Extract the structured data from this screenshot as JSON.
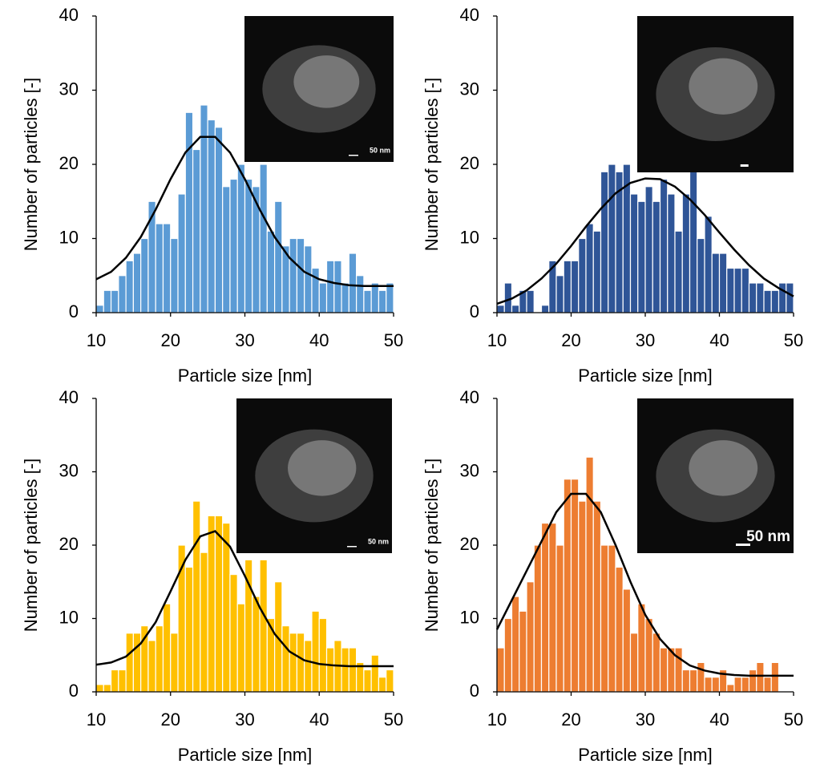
{
  "chart_data": [
    {
      "type": "histogram",
      "xlabel": "Particle size [nm]",
      "ylabel": "Number of particles [-]",
      "bins": [
        10,
        11,
        12,
        13,
        14,
        15,
        16,
        17,
        18,
        19,
        20,
        21,
        22,
        23,
        24,
        25,
        26,
        27,
        28,
        29,
        30,
        31,
        32,
        33,
        34,
        35,
        36,
        37,
        38,
        39,
        40,
        41,
        42,
        43,
        44,
        45,
        46,
        47,
        48,
        49,
        50
      ],
      "values": [
        1,
        3,
        3,
        5,
        7,
        8,
        10,
        15,
        12,
        12,
        10,
        16,
        27,
        22,
        28,
        26,
        25,
        17,
        18,
        20,
        18,
        17,
        20,
        11,
        15,
        9,
        10,
        10,
        9,
        6,
        4,
        7,
        7,
        4,
        8,
        5,
        3,
        4,
        3,
        4
      ],
      "color": "#5b9bd5",
      "fit": {
        "x": [
          10,
          12,
          14,
          16,
          18,
          20,
          22,
          24,
          26,
          28,
          30,
          32,
          34,
          36,
          38,
          40,
          42,
          44,
          46,
          48,
          50
        ],
        "values": [
          4.5,
          5.5,
          7.4,
          10.2,
          13.9,
          18.0,
          21.6,
          23.7,
          23.7,
          21.6,
          18.0,
          13.9,
          10.2,
          7.4,
          5.5,
          4.5,
          4.0,
          3.7,
          3.6,
          3.6,
          3.6
        ],
        "color": "#000000"
      },
      "xlim": [
        10,
        50
      ],
      "ylim": [
        0,
        40
      ],
      "xticks": [
        10,
        20,
        30,
        40,
        50
      ],
      "yticks": [
        0,
        10,
        20,
        30,
        40
      ],
      "inset_label": "50 nm"
    },
    {
      "type": "histogram",
      "xlabel": "Particle size [nm]",
      "ylabel": "Number of particles [-]",
      "bins": [
        10,
        11,
        12,
        13,
        14,
        15,
        16,
        17,
        18,
        19,
        20,
        21,
        22,
        23,
        24,
        25,
        26,
        27,
        28,
        29,
        30,
        31,
        32,
        33,
        34,
        35,
        36,
        37,
        38,
        39,
        40,
        41,
        42,
        43,
        44,
        45,
        46,
        47,
        48,
        49,
        50
      ],
      "values": [
        1,
        4,
        1,
        3,
        3,
        0,
        1,
        7,
        5,
        7,
        7,
        10,
        12,
        11,
        19,
        20,
        19,
        20,
        16,
        15,
        17,
        15,
        18,
        16,
        11,
        16,
        20,
        10,
        13,
        8,
        8,
        6,
        6,
        6,
        4,
        4,
        3,
        3,
        4,
        4
      ],
      "color": "#2f5597",
      "fit": {
        "x": [
          10,
          12,
          14,
          16,
          18,
          20,
          22,
          24,
          26,
          28,
          30,
          32,
          34,
          36,
          38,
          40,
          42,
          44,
          46,
          48,
          50
        ],
        "values": [
          1.2,
          1.9,
          3.0,
          4.6,
          6.6,
          9.0,
          11.6,
          14.0,
          16.1,
          17.5,
          18.1,
          18.0,
          17.0,
          15.3,
          13.2,
          10.8,
          8.5,
          6.4,
          4.6,
          3.3,
          2.2
        ],
        "color": "#000000"
      },
      "xlim": [
        10,
        50
      ],
      "ylim": [
        0,
        40
      ],
      "xticks": [
        10,
        20,
        30,
        40,
        50
      ],
      "yticks": [
        0,
        10,
        20,
        30,
        40
      ]
    },
    {
      "type": "histogram",
      "xlabel": "Particle size [nm]",
      "ylabel": "Number of particles [-]",
      "bins": [
        10,
        11,
        12,
        13,
        14,
        15,
        16,
        17,
        18,
        19,
        20,
        21,
        22,
        23,
        24,
        25,
        26,
        27,
        28,
        29,
        30,
        31,
        32,
        33,
        34,
        35,
        36,
        37,
        38,
        39,
        40,
        41,
        42,
        43,
        44,
        45,
        46,
        47,
        48,
        49,
        50
      ],
      "values": [
        1,
        1,
        3,
        3,
        8,
        8,
        9,
        7,
        9,
        12,
        8,
        20,
        17,
        26,
        19,
        24,
        24,
        23,
        16,
        12,
        18,
        13,
        18,
        10,
        15,
        9,
        8,
        8,
        7,
        11,
        10,
        6,
        7,
        6,
        6,
        4,
        3,
        5,
        2,
        3
      ],
      "color": "#ffc000",
      "fit": {
        "x": [
          10,
          12,
          14,
          16,
          18,
          20,
          22,
          24,
          26,
          28,
          30,
          32,
          34,
          36,
          38,
          40,
          42,
          44,
          46,
          48,
          50
        ],
        "values": [
          3.7,
          4.0,
          4.8,
          6.6,
          9.5,
          13.7,
          18.0,
          21.2,
          21.9,
          19.8,
          15.8,
          11.5,
          7.9,
          5.5,
          4.3,
          3.8,
          3.6,
          3.5,
          3.5,
          3.5,
          3.5
        ],
        "color": "#000000"
      },
      "xlim": [
        10,
        50
      ],
      "ylim": [
        0,
        40
      ],
      "xticks": [
        10,
        20,
        30,
        40,
        50
      ],
      "yticks": [
        0,
        10,
        20,
        30,
        40
      ],
      "inset_label": "50 nm"
    },
    {
      "type": "histogram",
      "xlabel": "Particle size [nm]",
      "ylabel": "Number of particles [-]",
      "bins": [
        10,
        11,
        12,
        13,
        14,
        15,
        16,
        17,
        18,
        19,
        20,
        21,
        22,
        23,
        24,
        25,
        26,
        27,
        28,
        29,
        30,
        31,
        32,
        33,
        34,
        35,
        36,
        37,
        38,
        39,
        40,
        41,
        42,
        43,
        44,
        45,
        46,
        47,
        48,
        49,
        50
      ],
      "values": [
        6,
        10,
        13,
        11,
        15,
        20,
        23,
        23,
        20,
        29,
        29,
        26,
        32,
        26,
        20,
        20,
        17,
        14,
        8,
        12,
        10,
        8,
        6,
        6,
        6,
        3,
        3,
        4,
        2,
        2,
        3,
        1,
        2,
        2,
        3,
        4,
        2,
        4,
        0,
        0
      ],
      "color": "#ed7d31",
      "fit": {
        "x": [
          10,
          12,
          14,
          16,
          18,
          20,
          22,
          24,
          26,
          28,
          30,
          32,
          34,
          36,
          38,
          40,
          42,
          44,
          46,
          48,
          50
        ],
        "values": [
          8.5,
          12.5,
          16.5,
          20.5,
          24.5,
          27,
          27,
          24.5,
          20,
          15,
          10.5,
          7.2,
          5,
          3.6,
          2.9,
          2.5,
          2.3,
          2.2,
          2.2,
          2.2,
          2.2
        ],
        "color": "#000000"
      },
      "xlim": [
        10,
        50
      ],
      "ylim": [
        0,
        40
      ],
      "xticks": [
        10,
        20,
        30,
        40,
        50
      ],
      "yticks": [
        0,
        10,
        20,
        30,
        40
      ],
      "inset_label": "50 nm"
    }
  ]
}
